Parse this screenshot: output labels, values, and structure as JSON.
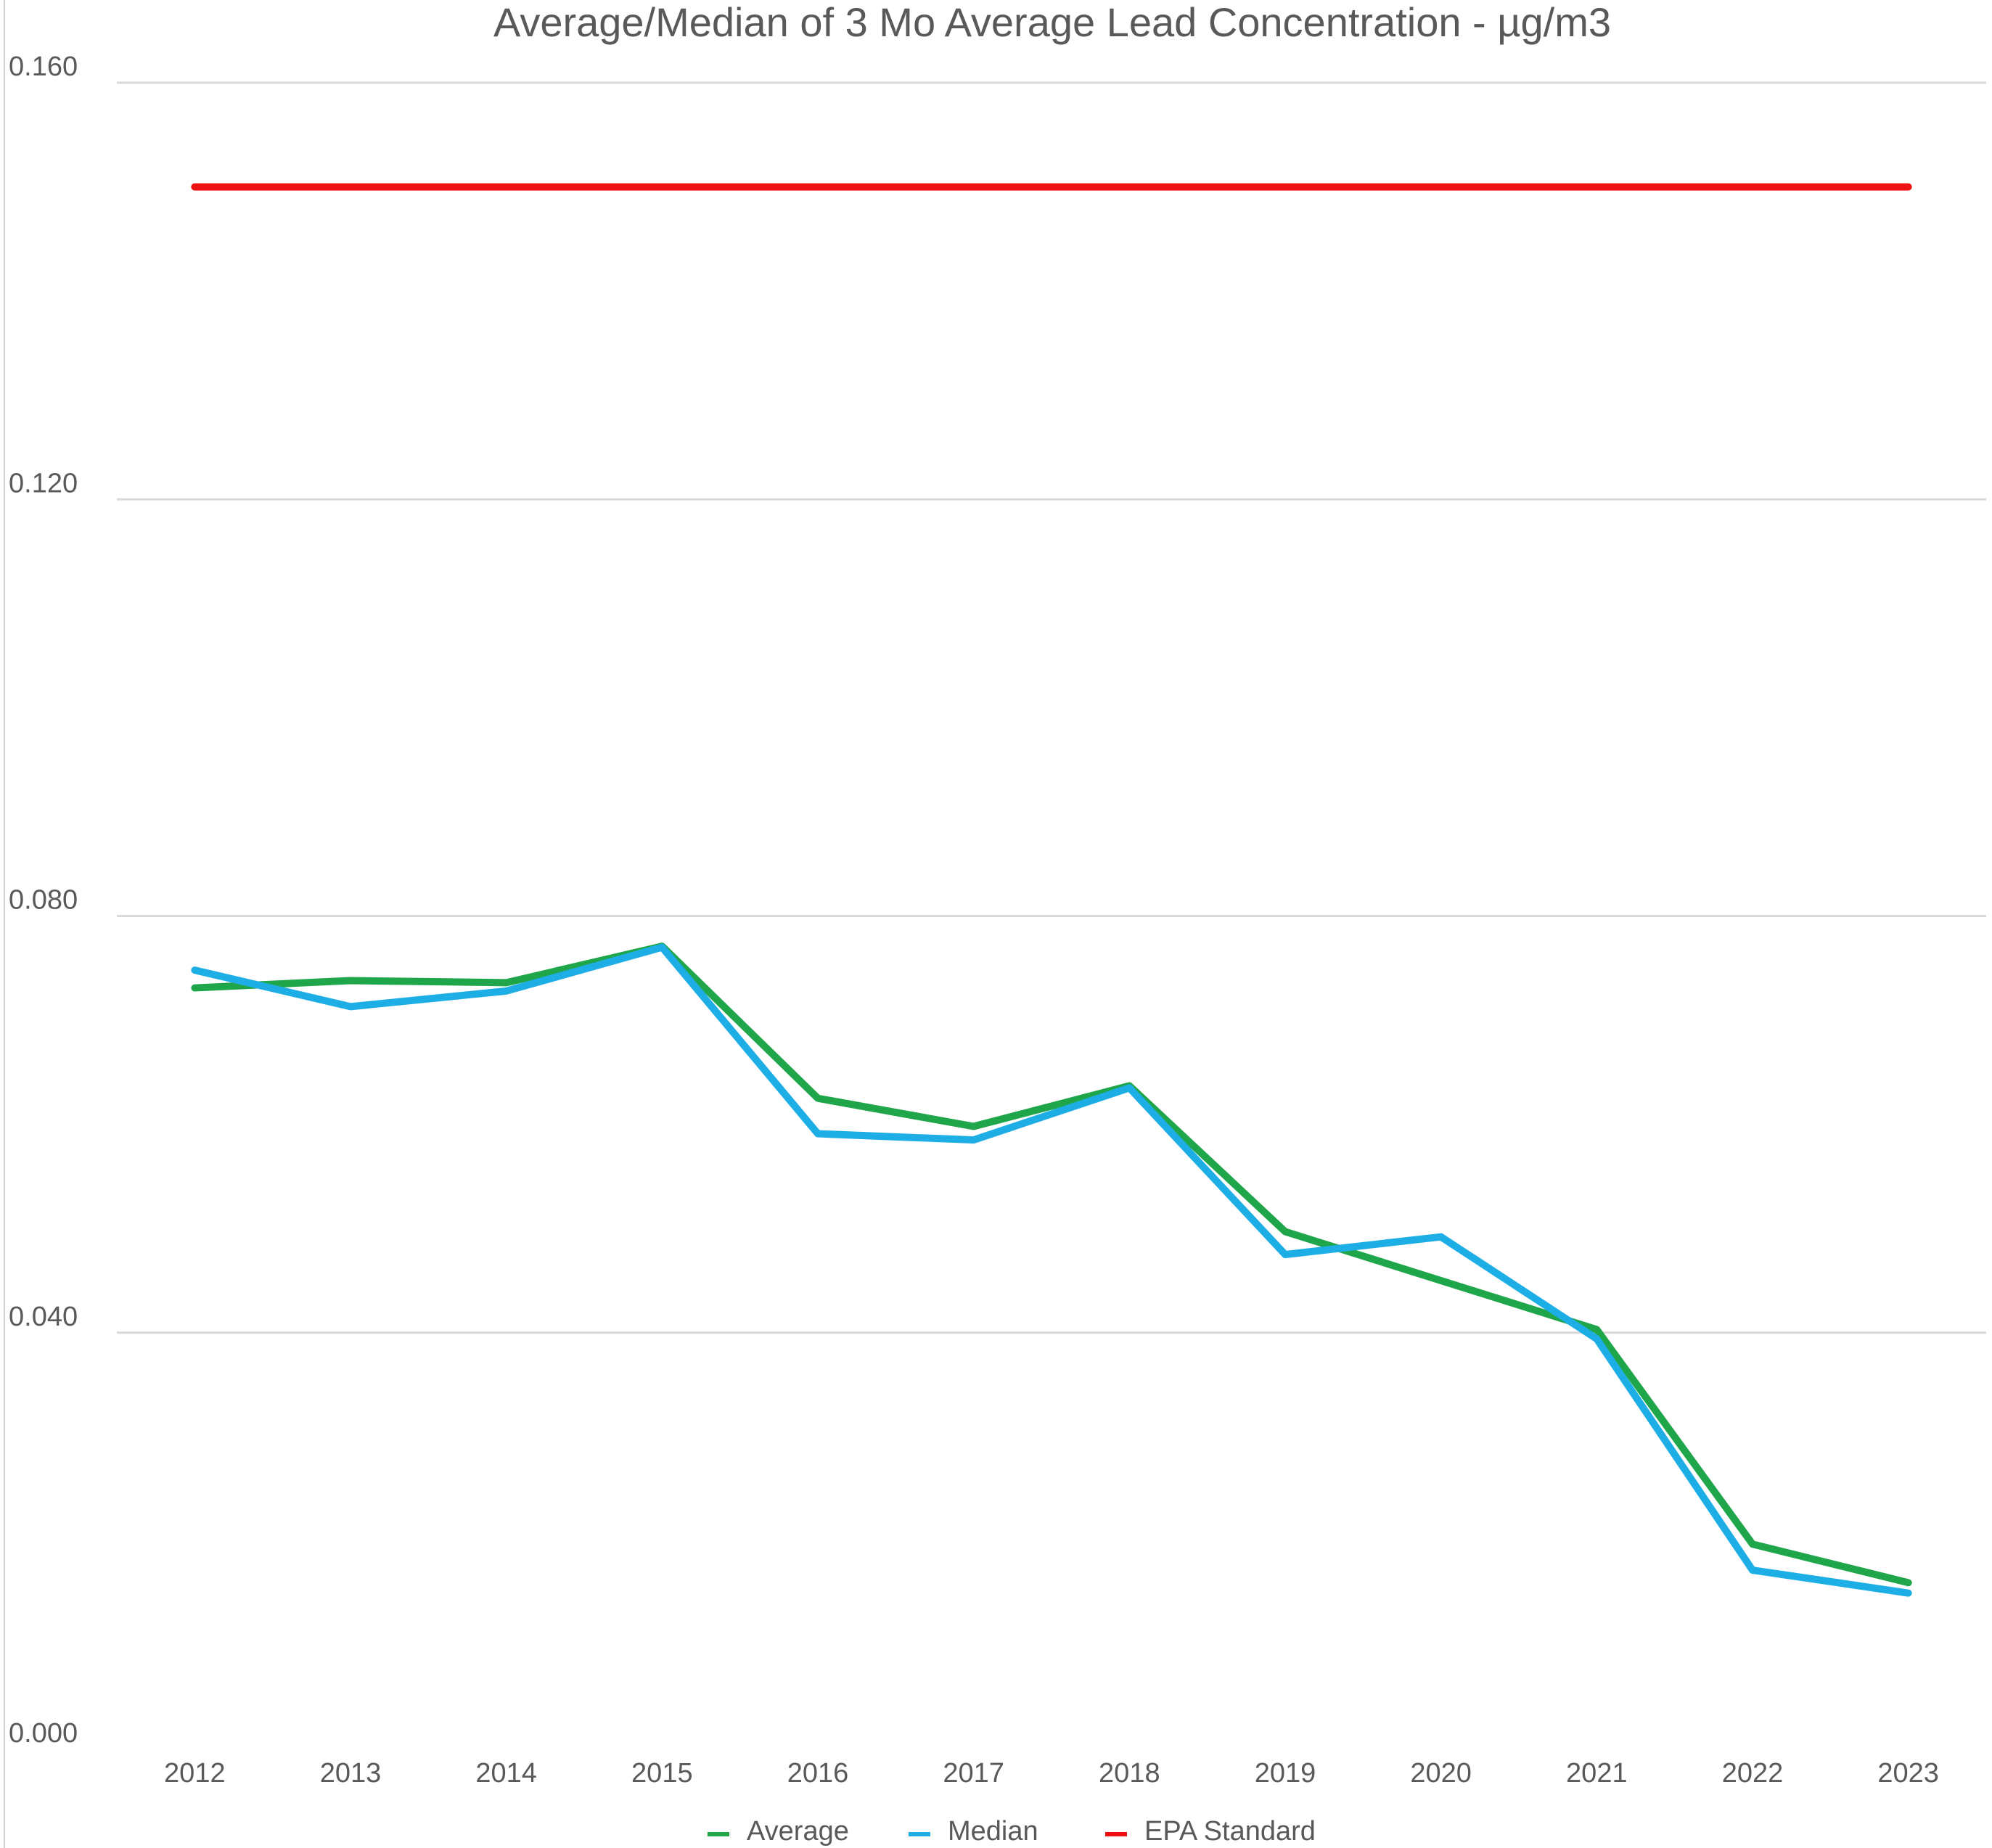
{
  "chart_data": {
    "type": "line",
    "title": "Average/Median of 3 Mo Average Lead Concentration - µg/m3",
    "categories": [
      "2012",
      "2013",
      "2014",
      "2015",
      "2016",
      "2017",
      "2018",
      "2019",
      "2020",
      "2021",
      "2022",
      "2023"
    ],
    "series": [
      {
        "name": "Average",
        "color": "#1fa64a",
        "values": [
          0.0731,
          0.0738,
          0.0736,
          0.0771,
          0.0625,
          0.0598,
          0.0637,
          0.0497,
          0.045,
          0.0403,
          0.0197,
          0.016
        ]
      },
      {
        "name": "Median",
        "color": "#1eaee6",
        "values": [
          0.0748,
          0.0713,
          0.0728,
          0.077,
          0.0591,
          0.0585,
          0.0635,
          0.0475,
          0.0492,
          0.0394,
          0.0172,
          0.015
        ]
      },
      {
        "name": "EPA Standard",
        "color": "#ee1111",
        "values": [
          0.15,
          0.15,
          0.15,
          0.15,
          0.15,
          0.15,
          0.15,
          0.15,
          0.15,
          0.15,
          0.15,
          0.15
        ]
      }
    ],
    "ylim": [
      0,
      0.16
    ],
    "yticks": [
      {
        "value": 0,
        "label": "0.000"
      },
      {
        "value": 0.04,
        "label": "0.040"
      },
      {
        "value": 0.08,
        "label": "0.080"
      },
      {
        "value": 0.12,
        "label": "0.120"
      },
      {
        "value": 0.16,
        "label": "0.160"
      }
    ],
    "grid": true,
    "legend": "bottom"
  }
}
